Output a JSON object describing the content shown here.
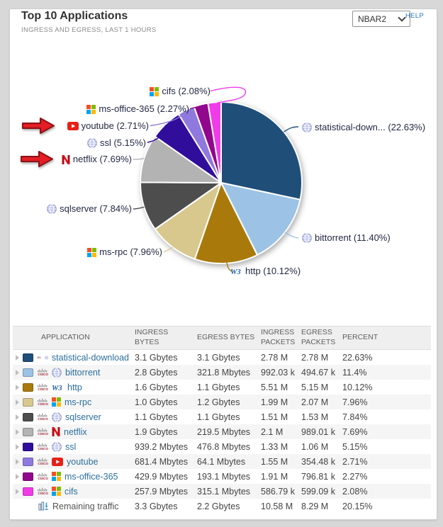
{
  "header": {
    "title": "Top 10 Applications",
    "subtitle": "INGRESS AND EGRESS, LAST 1 HOURS",
    "selector_value": "NBAR2",
    "help_label": "HELP"
  },
  "colors": {
    "link": "#2d6f9e",
    "help_link": "#2a7ab8",
    "annotation_arrow": "#e31e25"
  },
  "chart_data": {
    "type": "pie",
    "title": "Top 10 Applications",
    "unit": "percent of traffic, ingress and egress, last 1 hours",
    "slices": [
      {
        "name": "statistical-download",
        "label": "statistical-down...",
        "pct": 22.63,
        "pct_label": "22.63%",
        "color": "#1F4E79",
        "icon": "globe"
      },
      {
        "name": "bittorrent",
        "label": "bittorrent",
        "pct": 11.4,
        "pct_label": "11.40%",
        "color": "#9CC3E5",
        "icon": "globe"
      },
      {
        "name": "http",
        "label": "http",
        "pct": 10.12,
        "pct_label": "10.12%",
        "color": "#A97A0B",
        "icon": "w3"
      },
      {
        "name": "ms-rpc",
        "label": "ms-rpc",
        "pct": 7.96,
        "pct_label": "7.96%",
        "color": "#D8C88E",
        "icon": "ms"
      },
      {
        "name": "sqlserver",
        "label": "sqlserver",
        "pct": 7.84,
        "pct_label": "7.84%",
        "color": "#4D4D4D",
        "icon": "globe"
      },
      {
        "name": "netflix",
        "label": "netflix",
        "pct": 7.69,
        "pct_label": "7.69%",
        "color": "#B3B3B3",
        "icon": "netflix"
      },
      {
        "name": "ssl",
        "label": "ssl",
        "pct": 5.15,
        "pct_label": "5.15%",
        "color": "#300E9B",
        "icon": "globe"
      },
      {
        "name": "youtube",
        "label": "youtube",
        "pct": 2.71,
        "pct_label": "2.71%",
        "color": "#8F79DF",
        "icon": "youtube"
      },
      {
        "name": "ms-office-365",
        "label": "ms-office-365",
        "pct": 2.27,
        "pct_label": "2.27%",
        "color": "#91078D",
        "icon": "ms"
      },
      {
        "name": "cifs",
        "label": "cifs",
        "pct": 2.08,
        "pct_label": "2.08%",
        "color": "#F23BE8",
        "icon": "ms"
      }
    ],
    "annotations": [
      {
        "type": "red-arrow",
        "target": "youtube"
      },
      {
        "type": "red-arrow",
        "target": "netflix"
      }
    ]
  },
  "table": {
    "columns": [
      "APPLICATION",
      "INGRESS BYTES",
      "EGRESS BYTES",
      "INGRESS PACKETS",
      "EGRESS PACKETS",
      "PERCENT"
    ],
    "rows": [
      {
        "app": "statistical-download",
        "icon": "globe",
        "color": "#1F4E79",
        "ingress_bytes": "3.1 Gbytes",
        "egress_bytes": "3.1 Gbytes",
        "ingress_packets": "2.78 M",
        "egress_packets": "2.78 M",
        "percent": "22.63%"
      },
      {
        "app": "bittorrent",
        "icon": "globe",
        "color": "#9CC3E5",
        "ingress_bytes": "2.8 Gbytes",
        "egress_bytes": "321.8 Mbytes",
        "ingress_packets": "992.03 k",
        "egress_packets": "494.67 k",
        "percent": "11.4%"
      },
      {
        "app": "http",
        "icon": "w3",
        "color": "#A97A0B",
        "ingress_bytes": "1.6 Gbytes",
        "egress_bytes": "1.1 Gbytes",
        "ingress_packets": "5.51 M",
        "egress_packets": "5.15 M",
        "percent": "10.12%"
      },
      {
        "app": "ms-rpc",
        "icon": "ms",
        "color": "#D8C88E",
        "ingress_bytes": "1.0 Gbytes",
        "egress_bytes": "1.2 Gbytes",
        "ingress_packets": "1.99 M",
        "egress_packets": "2.07 M",
        "percent": "7.96%"
      },
      {
        "app": "sqlserver",
        "icon": "globe",
        "color": "#4D4D4D",
        "ingress_bytes": "1.1 Gbytes",
        "egress_bytes": "1.1 Gbytes",
        "ingress_packets": "1.51 M",
        "egress_packets": "1.53 M",
        "percent": "7.84%"
      },
      {
        "app": "netflix",
        "icon": "netflix",
        "color": "#B3B3B3",
        "ingress_bytes": "1.9 Gbytes",
        "egress_bytes": "219.5 Mbytes",
        "ingress_packets": "2.1 M",
        "egress_packets": "989.01 k",
        "percent": "7.69%"
      },
      {
        "app": "ssl",
        "icon": "globe",
        "color": "#300E9B",
        "ingress_bytes": "939.2 Mbytes",
        "egress_bytes": "476.8 Mbytes",
        "ingress_packets": "1.33 M",
        "egress_packets": "1.06 M",
        "percent": "5.15%"
      },
      {
        "app": "youtube",
        "icon": "youtube",
        "color": "#8F79DF",
        "ingress_bytes": "681.4 Mbytes",
        "egress_bytes": "64.1 Mbytes",
        "ingress_packets": "1.55 M",
        "egress_packets": "354.48 k",
        "percent": "2.71%"
      },
      {
        "app": "ms-office-365",
        "icon": "ms",
        "color": "#91078D",
        "ingress_bytes": "429.9 Mbytes",
        "egress_bytes": "193.1 Mbytes",
        "ingress_packets": "1.91 M",
        "egress_packets": "796.81 k",
        "percent": "2.27%"
      },
      {
        "app": "cifs",
        "icon": "ms",
        "color": "#F23BE8",
        "ingress_bytes": "257.9 Mbytes",
        "egress_bytes": "315.1 Mbytes",
        "ingress_packets": "586.79 k",
        "egress_packets": "599.09 k",
        "percent": "2.08%"
      },
      {
        "app": "Remaining traffic",
        "icon": "remaining",
        "color": null,
        "ingress_bytes": "3.3 Gbytes",
        "egress_bytes": "2.2 Gbytes",
        "ingress_packets": "10.58 M",
        "egress_packets": "8.29 M",
        "percent": "20.15%"
      }
    ]
  }
}
